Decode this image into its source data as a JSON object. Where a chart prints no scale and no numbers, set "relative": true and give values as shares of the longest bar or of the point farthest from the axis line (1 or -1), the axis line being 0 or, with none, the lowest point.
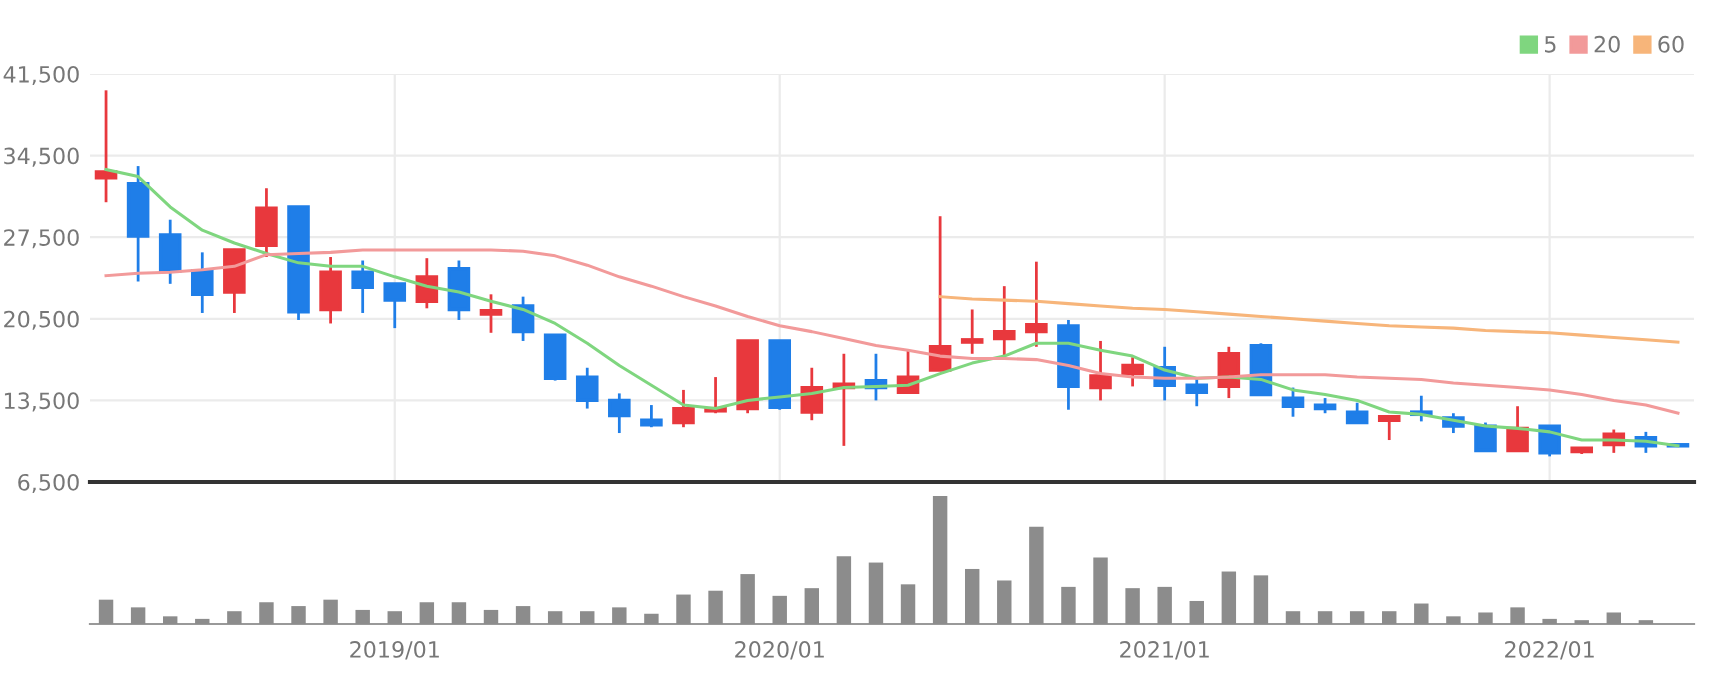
{
  "chart_data": [
    {
      "type": "candlestick",
      "categories": [
        null,
        null,
        null,
        null,
        null,
        null,
        null,
        null,
        null,
        "2019/01",
        null,
        null,
        null,
        null,
        null,
        null,
        null,
        null,
        null,
        null,
        null,
        "2020/01",
        null,
        null,
        null,
        null,
        null,
        null,
        null,
        null,
        null,
        null,
        null,
        "2021/01",
        null,
        null,
        null,
        null,
        null,
        null,
        null,
        null,
        null,
        null,
        null,
        "2022/01",
        null,
        null,
        null,
        null
      ],
      "ohlc": [
        [
          32600,
          40100,
          30500,
          33100
        ],
        [
          32100,
          33600,
          23700,
          27600
        ],
        [
          27700,
          29000,
          23500,
          24600
        ],
        [
          24600,
          26200,
          21000,
          22600
        ],
        [
          22800,
          26500,
          21000,
          26400
        ],
        [
          26800,
          31700,
          25800,
          30000
        ],
        [
          30100,
          30100,
          20400,
          21100
        ],
        [
          21300,
          25800,
          20100,
          24500
        ],
        [
          24500,
          25500,
          21000,
          23200
        ],
        [
          23500,
          23500,
          19700,
          22100
        ],
        [
          22000,
          25700,
          21400,
          24100
        ],
        [
          24800,
          25500,
          20400,
          21300
        ],
        [
          20900,
          22600,
          19300,
          21200
        ],
        [
          21600,
          22400,
          18600,
          19400
        ],
        [
          19100,
          19100,
          15200,
          15400
        ],
        [
          15500,
          16300,
          12800,
          13500
        ],
        [
          13500,
          14100,
          10700,
          12200
        ],
        [
          11800,
          13100,
          11200,
          11400
        ],
        [
          11600,
          14400,
          11200,
          12800
        ],
        [
          12600,
          15500,
          12400,
          12800
        ],
        [
          12800,
          18600,
          12400,
          18600
        ],
        [
          18600,
          18600,
          12700,
          12900
        ],
        [
          12500,
          16300,
          11800,
          14600
        ],
        [
          14600,
          17500,
          9600,
          14900
        ],
        [
          15200,
          17500,
          13500,
          14600
        ],
        [
          14200,
          17800,
          14100,
          15500
        ],
        [
          16100,
          29300,
          16100,
          18100
        ],
        [
          18500,
          21300,
          17500,
          18700
        ],
        [
          18800,
          23300,
          17200,
          19400
        ],
        [
          19400,
          25400,
          18100,
          20000
        ],
        [
          19900,
          20400,
          12700,
          14700
        ],
        [
          14600,
          18600,
          13500,
          15600
        ],
        [
          15800,
          17200,
          14700,
          16500
        ],
        [
          16300,
          18100,
          13500,
          14800
        ],
        [
          14800,
          15500,
          13000,
          14200
        ],
        [
          14700,
          18100,
          13700,
          17500
        ],
        [
          18200,
          18400,
          14000,
          14000
        ],
        [
          13700,
          14600,
          12100,
          13000
        ],
        [
          13100,
          13700,
          12400,
          12800
        ],
        [
          12500,
          13300,
          11600,
          11600
        ],
        [
          11800,
          12200,
          10100,
          12100
        ],
        [
          12500,
          13900,
          11700,
          12300
        ],
        [
          12000,
          12400,
          10700,
          11300
        ],
        [
          11300,
          11600,
          9200,
          9200
        ],
        [
          9200,
          13000,
          9200,
          11100
        ],
        [
          11300,
          11300,
          8700,
          9000
        ],
        [
          9100,
          9500,
          8900,
          9400
        ],
        [
          9700,
          11000,
          9000,
          10600
        ],
        [
          10300,
          10800,
          9000,
          9600
        ],
        [
          9700,
          9700,
          9500,
          9600
        ]
      ],
      "colors": [
        "#e8383d",
        "#1f7ee8",
        "#1f7ee8",
        "#1f7ee8",
        "#e8383d",
        "#e8383d",
        "#1f7ee8",
        "#e8383d",
        "#1f7ee8",
        "#1f7ee8",
        "#e8383d",
        "#1f7ee8",
        "#e8383d",
        "#1f7ee8",
        "#1f7ee8",
        "#1f7ee8",
        "#1f7ee8",
        "#1f7ee8",
        "#e8383d",
        "#e8383d",
        "#e8383d",
        "#1f7ee8",
        "#e8383d",
        "#e8383d",
        "#1f7ee8",
        "#e8383d",
        "#e8383d",
        "#e8383d",
        "#e8383d",
        "#e8383d",
        "#1f7ee8",
        "#e8383d",
        "#e8383d",
        "#1f7ee8",
        "#1f7ee8",
        "#e8383d",
        "#1f7ee8",
        "#1f7ee8",
        "#1f7ee8",
        "#1f7ee8",
        "#e8383d",
        "#1f7ee8",
        "#1f7ee8",
        "#1f7ee8",
        "#e8383d",
        "#1f7ee8",
        "#e8383d",
        "#e8383d",
        "#1f7ee8",
        "#1f7ee8"
      ],
      "series": [
        {
          "name": "5",
          "type": "line",
          "color": "#7fd67f",
          "values": [
            33300,
            32700,
            30100,
            28100,
            27000,
            26100,
            25300,
            25000,
            25000,
            24100,
            23300,
            22800,
            22000,
            21300,
            20100,
            18400,
            16500,
            14800,
            13100,
            12800,
            13500,
            13800,
            14100,
            14600,
            14700,
            14800,
            15800,
            16700,
            17300,
            18400,
            18400,
            17800,
            17300,
            16100,
            15400,
            15500,
            15300,
            14400,
            14000,
            13500,
            12500,
            12300,
            11800,
            11300,
            11100,
            10800,
            10100,
            10100,
            10000,
            9600
          ]
        },
        {
          "name": "20",
          "type": "line",
          "color": "#f29a9a",
          "values": [
            24200,
            24400,
            24500,
            24700,
            25000,
            26000,
            26100,
            26200,
            26400,
            26400,
            26400,
            26400,
            26400,
            26300,
            25900,
            25100,
            24100,
            23300,
            22400,
            21600,
            20700,
            19900,
            19400,
            18800,
            18200,
            17800,
            17300,
            17100,
            17100,
            17000,
            16500,
            15800,
            15500,
            15400,
            15400,
            15500,
            15700,
            15700,
            15700,
            15500,
            15400,
            15300,
            15000,
            14800,
            14600,
            14400,
            14000,
            13500,
            13100,
            12400
          ]
        },
        {
          "name": "60",
          "type": "line",
          "color": "#f7b57a",
          "values": [
            null,
            null,
            null,
            null,
            null,
            null,
            null,
            null,
            null,
            null,
            null,
            null,
            null,
            null,
            null,
            null,
            null,
            null,
            null,
            null,
            null,
            null,
            null,
            null,
            null,
            null,
            22400,
            22200,
            22100,
            22000,
            21800,
            21600,
            21400,
            21300,
            21100,
            20900,
            20700,
            20500,
            20300,
            20100,
            19900,
            19800,
            19700,
            19500,
            19400,
            19300,
            19100,
            18900,
            18700,
            18500
          ]
        }
      ],
      "ylim": [
        6500,
        41500
      ],
      "yticks": [
        {
          "value": 6500,
          "label": "6,500"
        },
        {
          "value": 13500,
          "label": "13,500"
        },
        {
          "value": 20500,
          "label": "20,500"
        },
        {
          "value": 27500,
          "label": "27,500"
        },
        {
          "value": 34500,
          "label": "34,500"
        },
        {
          "value": 41500,
          "label": "41,500"
        }
      ],
      "grid": true,
      "legend": "top right",
      "tick_labels": "y"
    },
    {
      "type": "bar",
      "relative": true,
      "color": "#8c8c8c",
      "categories": [
        null,
        null,
        null,
        null,
        null,
        null,
        null,
        null,
        null,
        "2019/01",
        null,
        null,
        null,
        null,
        null,
        null,
        null,
        null,
        null,
        null,
        null,
        "2020/01",
        null,
        null,
        null,
        null,
        null,
        null,
        null,
        null,
        null,
        null,
        null,
        "2021/01",
        null,
        null,
        null,
        null,
        null,
        null,
        null,
        null,
        null,
        null,
        null,
        "2022/01",
        null,
        null,
        null,
        null
      ],
      "values": [
        0.19,
        0.13,
        0.06,
        0.04,
        0.1,
        0.17,
        0.14,
        0.19,
        0.11,
        0.1,
        0.17,
        0.17,
        0.11,
        0.14,
        0.1,
        0.1,
        0.13,
        0.08,
        0.23,
        0.26,
        0.39,
        0.22,
        0.28,
        0.53,
        0.48,
        0.31,
        1,
        0.43,
        0.34,
        0.76,
        0.29,
        0.52,
        0.28,
        0.29,
        0.18,
        0.41,
        0.38,
        0.1,
        0.1,
        0.1,
        0.1,
        0.16,
        0.06,
        0.09,
        0.13,
        0.04,
        0.03,
        0.09,
        0.03,
        null
      ],
      "tick_labels": "x"
    }
  ]
}
